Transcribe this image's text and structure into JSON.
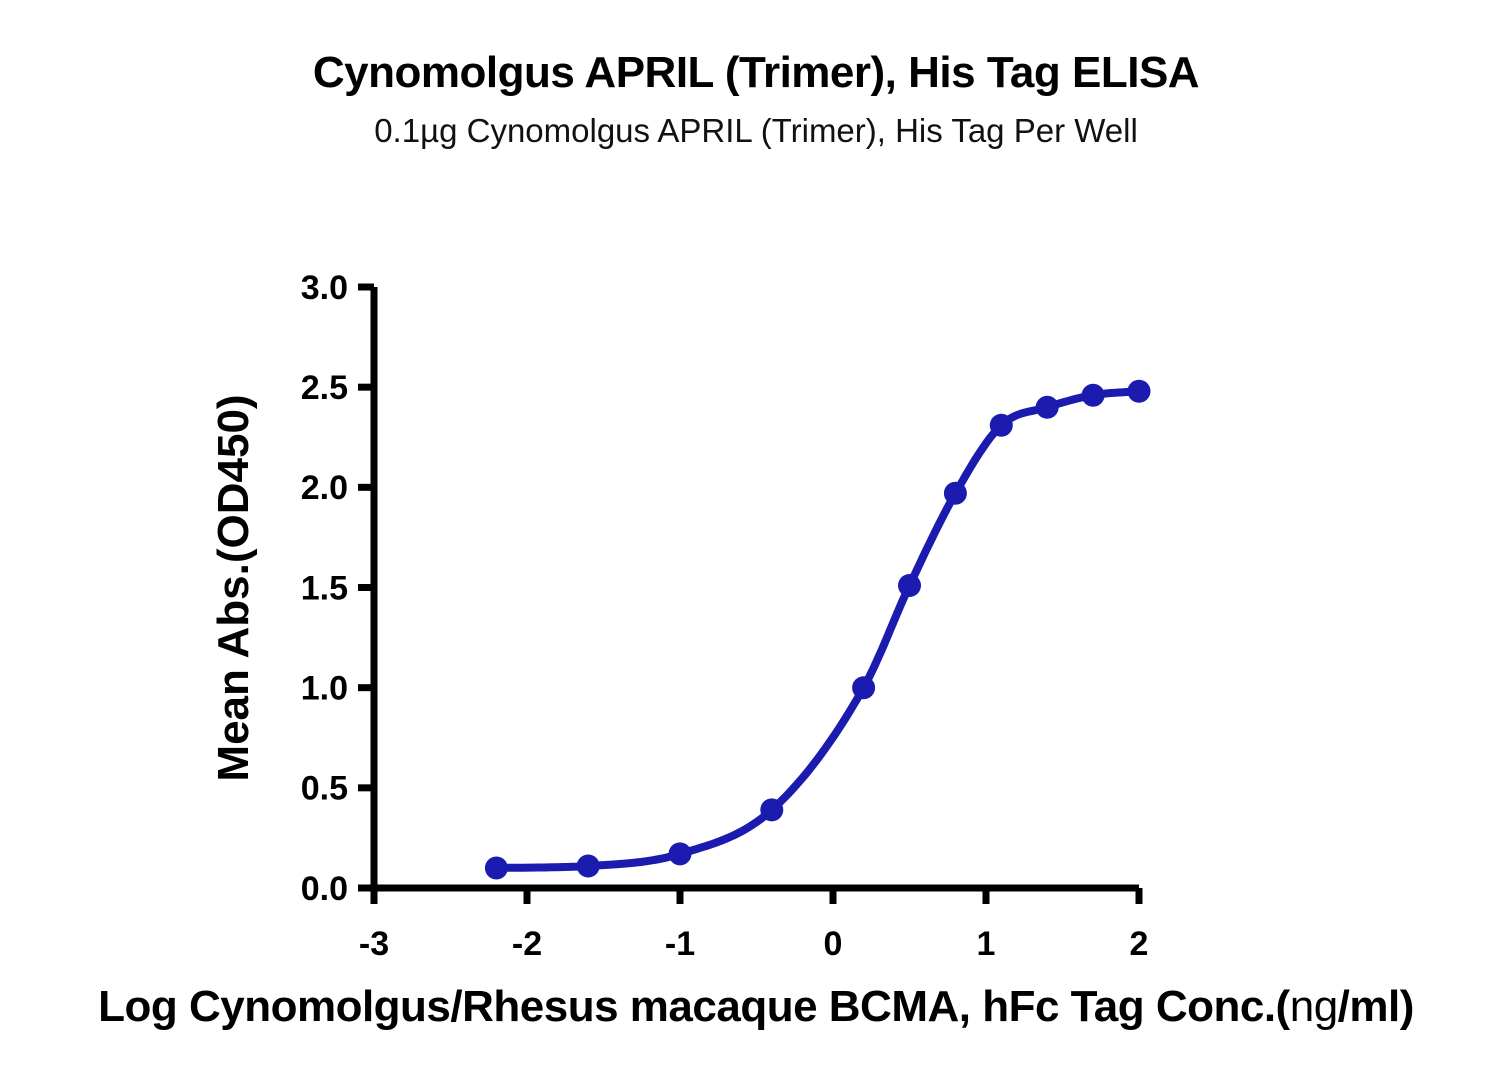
{
  "chart_data": {
    "type": "scatter",
    "title": "Cynomolgus APRIL (Trimer), His Tag ELISA",
    "subtitle": "0.1µg Cynomolgus APRIL (Trimer), His Tag Per Well",
    "x": [
      -2.2,
      -1.6,
      -1.0,
      -0.4,
      0.2,
      0.5,
      0.8,
      1.1,
      1.4,
      1.7,
      2.0
    ],
    "y": [
      0.1,
      0.11,
      0.17,
      0.39,
      1.0,
      1.51,
      1.97,
      2.31,
      2.4,
      2.46,
      2.48
    ],
    "xlabel": "Log Cynomolgus/Rhesus macaque BCMA, hFc Tag Conc.(ng/ml)",
    "xlabel_parts": {
      "bold_prefix": "Log Cynomolgus/Rhesus macaque BCMA, hFc Tag Conc.(",
      "light": "ng",
      "bold_suffix": "/ml)"
    },
    "ylabel": "Mean Abs.(OD450)",
    "xlim": [
      -3,
      2
    ],
    "ylim": [
      0,
      3
    ],
    "x_ticks": [
      -3,
      -2,
      -1,
      0,
      1,
      2
    ],
    "y_ticks": [
      0,
      0.5,
      1,
      1.5,
      2,
      2.5,
      3
    ],
    "curve": "4PL-sigmoid-fit-through-points",
    "marker_color": "#1b1bb0",
    "line_color": "#1b1bb0",
    "axis_color": "#000000",
    "grid": false,
    "legend": "none"
  }
}
